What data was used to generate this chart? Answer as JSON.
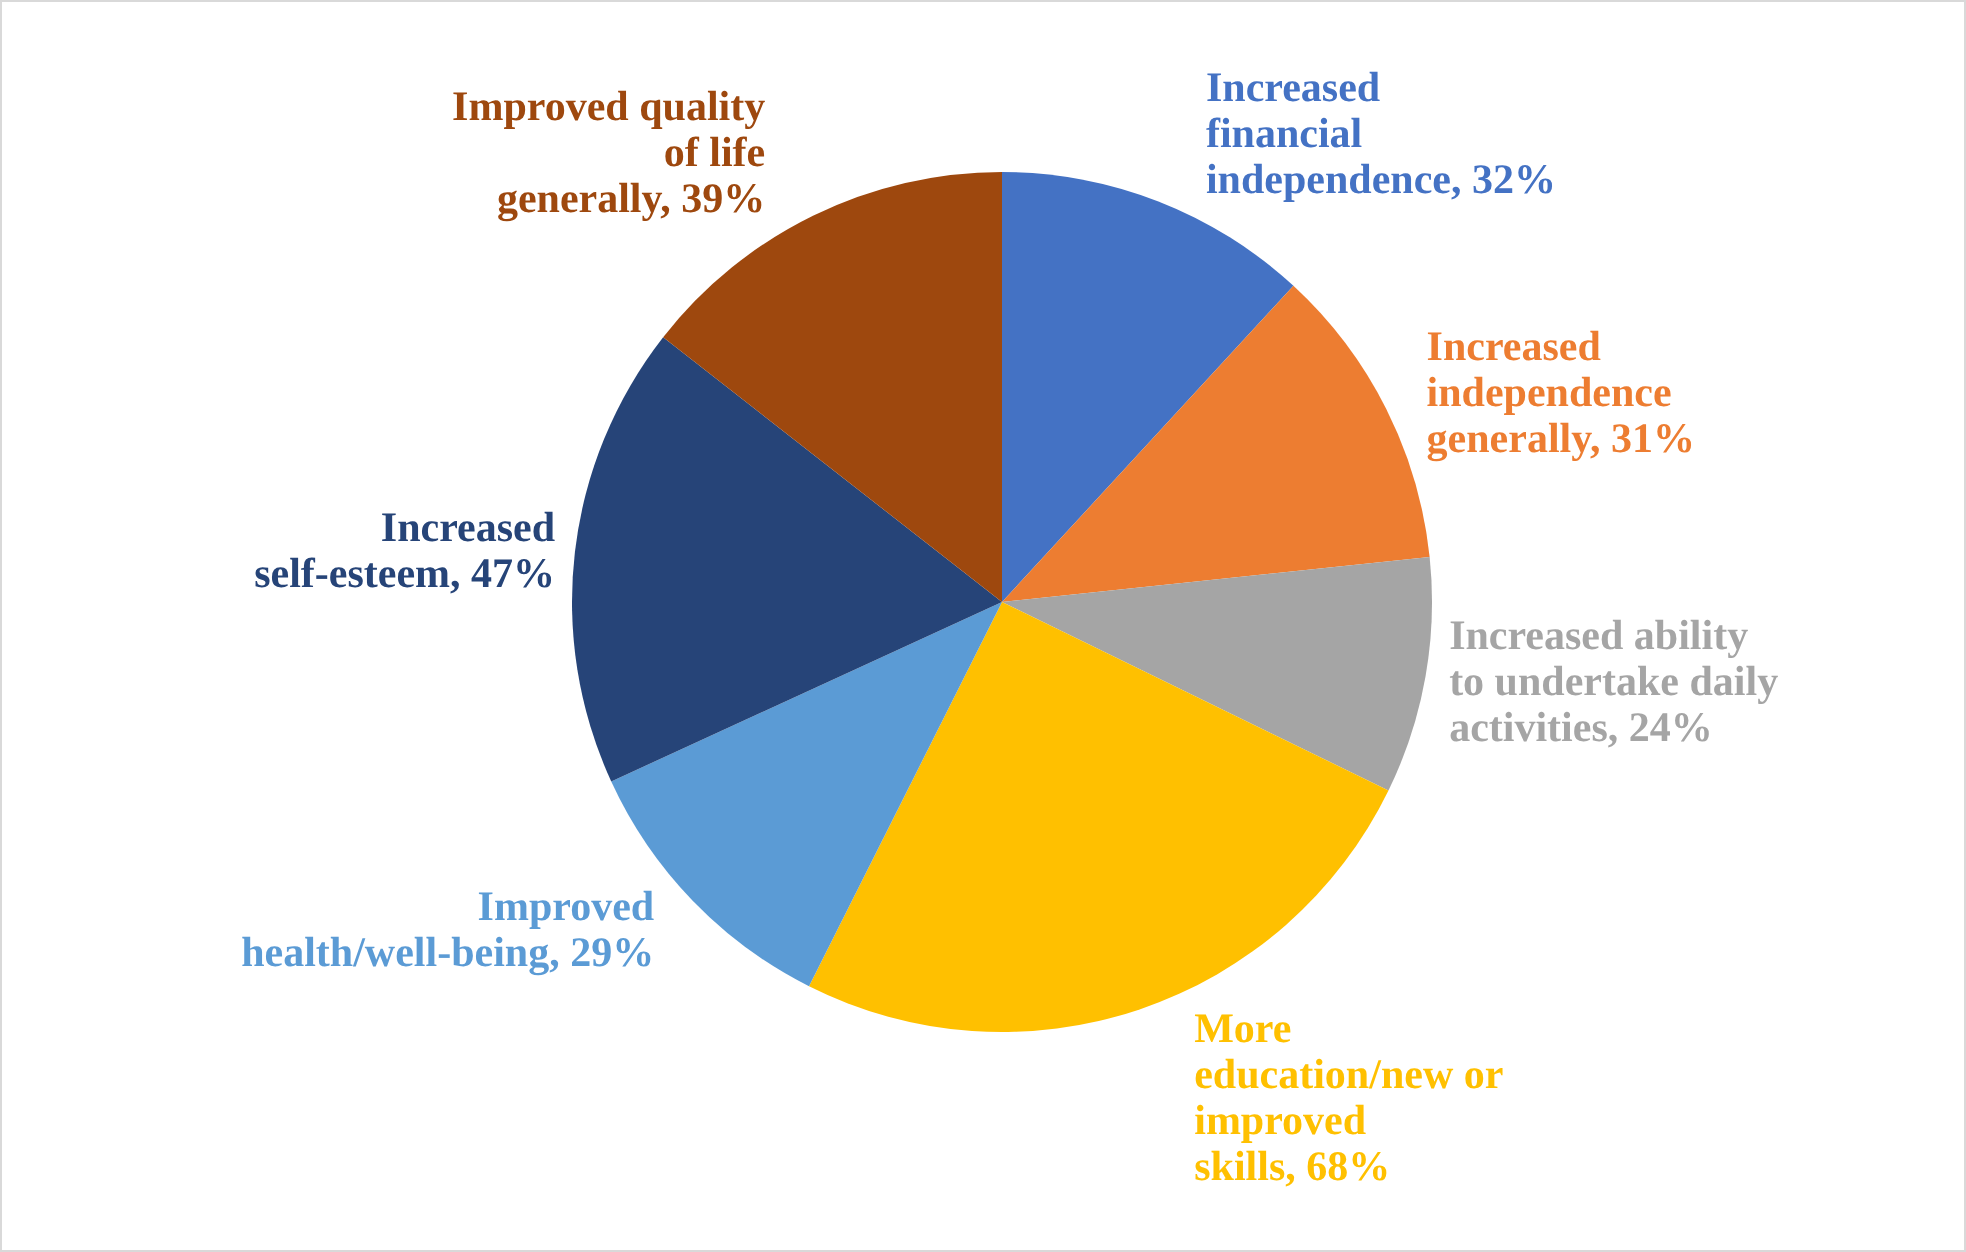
{
  "chart_data": {
    "type": "pie",
    "categories": [
      "Increased financial independence",
      "Increased independence generally",
      "Increased ability to undertake daily activities",
      "More education/new or improved skills",
      "Improved health/well-being",
      "Increased self-esteem",
      "Improved quality of life generally"
    ],
    "values": [
      32,
      31,
      24,
      68,
      29,
      47,
      39
    ],
    "value_labels": [
      "32%",
      "31%",
      "24%",
      "68%",
      "29%",
      "47%",
      "39%"
    ],
    "colors": [
      "#4472c4",
      "#ed7d31",
      "#a5a5a5",
      "#ffc000",
      "#5b9bd5",
      "#264478",
      "#9e480e"
    ],
    "legend": false
  }
}
